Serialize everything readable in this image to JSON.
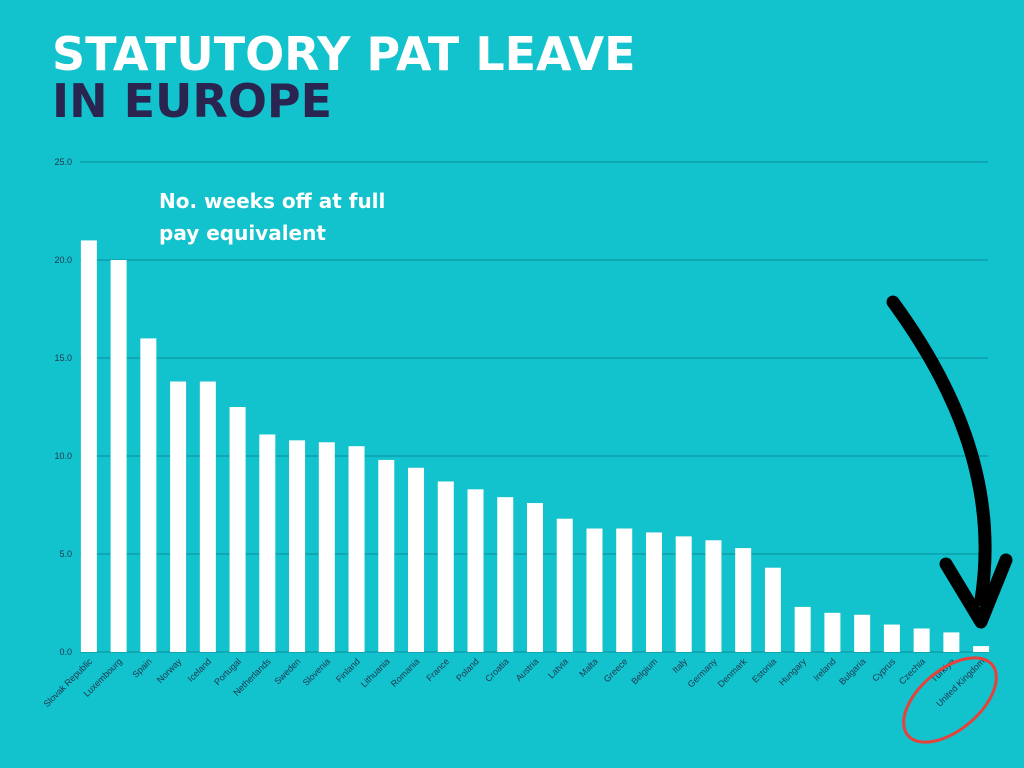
{
  "chart_data": {
    "type": "bar",
    "title": [
      "STATUTORY PAT LEAVE",
      "IN EUROPE"
    ],
    "annotation": [
      "No. weeks off at full",
      "pay equivalent"
    ],
    "categories": [
      "Slovak Republic",
      "Luxembourg",
      "Spain",
      "Norway",
      "Iceland",
      "Portugal",
      "Netherlands",
      "Sweden",
      "Slovenia",
      "Finland",
      "Lithuania",
      "Romania",
      "France",
      "Poland",
      "Croatia",
      "Austria",
      "Latvia",
      "Malta",
      "Greece",
      "Belgium",
      "Italy",
      "Germany",
      "Denmark",
      "Estonia",
      "Hungary",
      "Ireland",
      "Bulgaria",
      "Cyprus",
      "Czechia",
      "Türkiye",
      "United Kingdom"
    ],
    "values": [
      21.0,
      20.0,
      16.0,
      13.8,
      13.8,
      12.5,
      11.1,
      10.8,
      10.7,
      10.5,
      9.8,
      9.4,
      8.7,
      8.3,
      7.9,
      7.6,
      6.8,
      6.3,
      6.3,
      6.1,
      5.9,
      5.7,
      5.3,
      4.3,
      2.3,
      2.0,
      1.9,
      1.4,
      1.2,
      1.0,
      0.3
    ],
    "color": "#ffffff",
    "ylim": [
      0,
      25
    ],
    "yticks": [
      {
        "value": 0,
        "label": "0.0"
      },
      {
        "value": 5,
        "label": "5.0"
      },
      {
        "value": 10,
        "label": "10.0"
      },
      {
        "value": 15,
        "label": "15.0"
      },
      {
        "value": 20,
        "label": "20.0"
      },
      {
        "value": 25,
        "label": "25.0"
      }
    ],
    "grid": true
  }
}
